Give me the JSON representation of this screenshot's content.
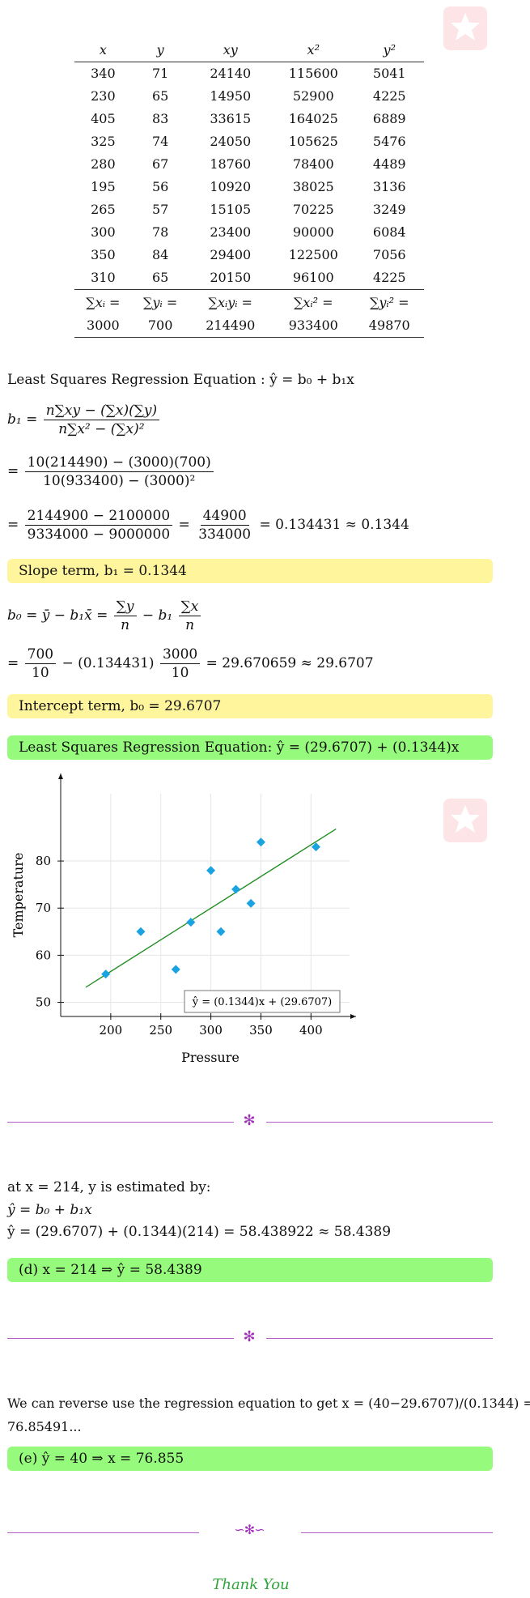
{
  "table": {
    "headers": [
      "x",
      "y",
      "xy",
      "x²",
      "y²"
    ],
    "rows": [
      [
        "340",
        "71",
        "24140",
        "115600",
        "5041"
      ],
      [
        "230",
        "65",
        "14950",
        "52900",
        "4225"
      ],
      [
        "405",
        "83",
        "33615",
        "164025",
        "6889"
      ],
      [
        "325",
        "74",
        "24050",
        "105625",
        "5476"
      ],
      [
        "280",
        "67",
        "18760",
        "78400",
        "4489"
      ],
      [
        "195",
        "56",
        "10920",
        "38025",
        "3136"
      ],
      [
        "265",
        "57",
        "15105",
        "70225",
        "3249"
      ],
      [
        "300",
        "78",
        "23400",
        "90000",
        "6084"
      ],
      [
        "350",
        "84",
        "29400",
        "122500",
        "7056"
      ],
      [
        "310",
        "65",
        "20150",
        "96100",
        "4225"
      ]
    ],
    "sum_labels": [
      "∑xᵢ =",
      "∑yᵢ =",
      "∑xᵢyᵢ =",
      "∑xᵢ² =",
      "∑yᵢ² ="
    ],
    "sum_values": [
      "3000",
      "700",
      "214490",
      "933400",
      "49870"
    ]
  },
  "regression": {
    "heading": "Least Squares Regression Equation : ŷ = b₀ + b₁x",
    "b1_lhs": "b₁ =",
    "b1_num": "n∑xy − (∑x)(∑y)",
    "b1_den": "n∑x² − (∑x)²",
    "step2_num": "10(214490) − (3000)(700)",
    "step2_den": "10(933400) − (3000)²",
    "step3_num1": "2144900 − 2100000",
    "step3_den1": "9334000 − 9000000",
    "step3_num2": "44900",
    "step3_den2": "334000",
    "step3_tail": "= 0.134431 ≈ 0.1344",
    "slope_box": "Slope term, b₁ = 0.1344",
    "b0_lhs": "b₀ = ȳ − b₁x̄ =",
    "b0_num1": "∑y",
    "b0_den1": "n",
    "b0_mid": "− b₁",
    "b0_num2": "∑x",
    "b0_den2": "n",
    "b0_step_a": "=",
    "b0_num3": "700",
    "b0_den3": "10",
    "b0_step_b": "− (0.134431)",
    "b0_num4": "3000",
    "b0_den4": "10",
    "b0_tail": "= 29.670659 ≈ 29.6707",
    "intercept_box": "Intercept term, b₀ = 29.6707",
    "equation_box": "Least Squares Regression Equation:  ŷ = (29.6707) + (0.1344)x"
  },
  "chart_data": {
    "type": "scatter",
    "xlabel": "Pressure",
    "ylabel": "Temperature",
    "xlim": [
      150,
      445
    ],
    "ylim": [
      47,
      96
    ],
    "xticks": [
      200,
      250,
      300,
      350,
      400
    ],
    "yticks": [
      50,
      60,
      70,
      80
    ],
    "grid": true,
    "points": [
      [
        340,
        71
      ],
      [
        230,
        65
      ],
      [
        405,
        83
      ],
      [
        325,
        74
      ],
      [
        280,
        67
      ],
      [
        195,
        56
      ],
      [
        265,
        57
      ],
      [
        300,
        78
      ],
      [
        350,
        84
      ],
      [
        310,
        65
      ]
    ],
    "regression_line": {
      "intercept": 29.6707,
      "slope": 0.1344,
      "x_from": 175,
      "x_to": 425
    },
    "legend": "ŷ = (0.1344)x + (29.6707)",
    "legend_position": "bottom-right",
    "colors": {
      "points": "#1aa3e0",
      "line": "#1c8c1c"
    }
  },
  "part_d": {
    "line1": "at x = 214, y is estimated by:",
    "line2": "ŷ = b₀ + b₁x",
    "line3": "ŷ = (29.6707) + (0.1344)(214) = 58.438922 ≈ 58.4389",
    "box": "(d) x = 214 ⇒ ŷ = 58.4389"
  },
  "part_e": {
    "line1": "We can reverse use the regression equation to get x = (40−29.6707)/(0.1344) =",
    "line2": "76.85491...",
    "box": "(e) ŷ = 40 ⇒ x = 76.855"
  },
  "closing": "Thank You",
  "colors": {
    "yellow_box": "#fff59d",
    "green_box": "#96fb7c",
    "divider": "#b45cc8",
    "thanks": "#2fa43a"
  }
}
